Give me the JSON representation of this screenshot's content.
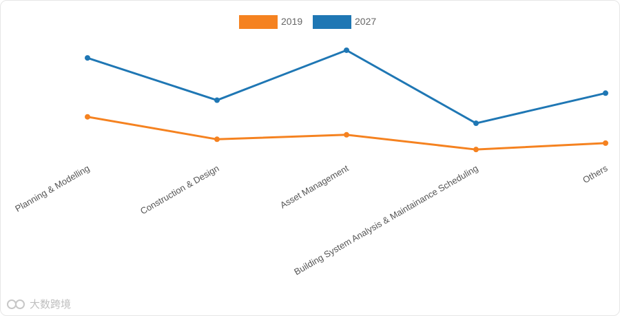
{
  "chart_data": {
    "type": "line",
    "categories": [
      "Planning & Modelling",
      "Construction & Design",
      "Asset Management",
      "Building System Analysis & Maintainance Scheduling",
      "Others"
    ],
    "series": [
      {
        "name": "2019",
        "color": "#f58220",
        "values": [
          68,
          33,
          40,
          17,
          27
        ]
      },
      {
        "name": "2027",
        "color": "#1f77b4",
        "values": [
          160,
          94,
          172,
          58,
          105
        ]
      }
    ],
    "ylim": [
      0,
      230
    ],
    "legend_position": "top-center",
    "grid": false,
    "title": "",
    "xlabel": "",
    "ylabel": ""
  },
  "watermark": {
    "text": "大数跨境"
  }
}
